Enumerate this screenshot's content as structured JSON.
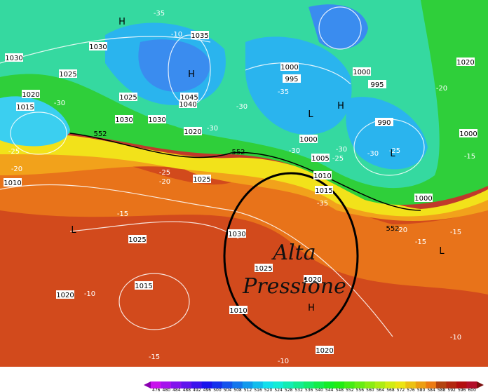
{
  "map": {
    "isobar_labels": [
      "1030",
      "1030",
      "1035",
      "1025",
      "1020",
      "1015",
      "1025",
      "1045",
      "1040",
      "1030",
      "1030",
      "1020",
      "1000",
      "995",
      "1000",
      "995",
      "990",
      "1000",
      "1005",
      "1010",
      "1015",
      "1000",
      "1020",
      "1000",
      "1010",
      "1025",
      "1025",
      "1030",
      "1025",
      "1020",
      "1015",
      "1020",
      "1010",
      "1020"
    ],
    "temperature_labels": [
      "-35",
      "-10",
      "-35",
      "-30",
      "-30",
      "-30",
      "-25",
      "-20",
      "-30",
      "-30",
      "-25",
      "-30",
      "-25",
      "-20",
      "-15",
      "-25",
      "-20",
      "-35",
      "-15",
      "-15",
      "-15",
      "-20",
      "-10",
      "-15",
      "-10",
      "-10"
    ],
    "thickness_labels": [
      "552",
      "552",
      "552"
    ],
    "pressure_centers": [
      "H",
      "H",
      "H",
      "H",
      "L",
      "L",
      "L",
      "L"
    ],
    "annotation": [
      "Alta",
      "Pressione"
    ]
  },
  "colorbar": {
    "labels": [
      476,
      480,
      484,
      488,
      492,
      496,
      500,
      504,
      508,
      512,
      516,
      520,
      524,
      528,
      532,
      536,
      540,
      544,
      548,
      552,
      556,
      560,
      564,
      568,
      572,
      576,
      580,
      584,
      588,
      592,
      596,
      600
    ]
  }
}
